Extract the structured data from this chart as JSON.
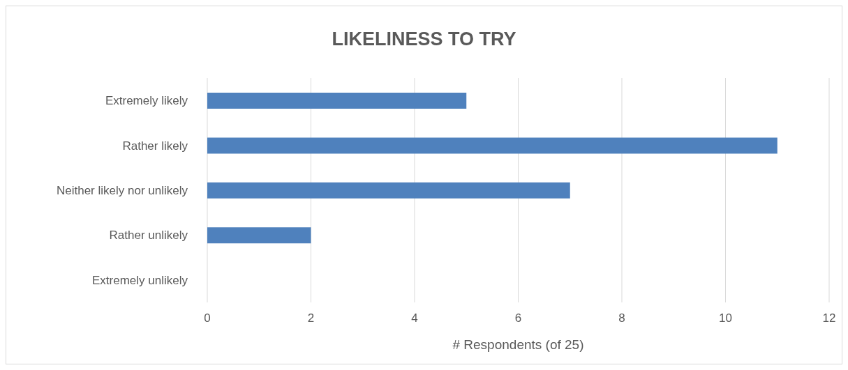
{
  "chart_data": {
    "type": "bar",
    "orientation": "horizontal",
    "title": "LIKELINESS TO TRY",
    "xlabel": "# Respondents (of 25)",
    "categories": [
      "Extremely likely",
      "Rather likely",
      "Neither likely nor unlikely",
      "Rather unlikely",
      "Extremely unlikely"
    ],
    "values": [
      5,
      11,
      7,
      2,
      0
    ],
    "color": "#4f81bd",
    "xlim": [
      0,
      12
    ],
    "xticks": [
      0,
      2,
      4,
      6,
      8,
      10,
      12
    ],
    "grid": "x"
  }
}
